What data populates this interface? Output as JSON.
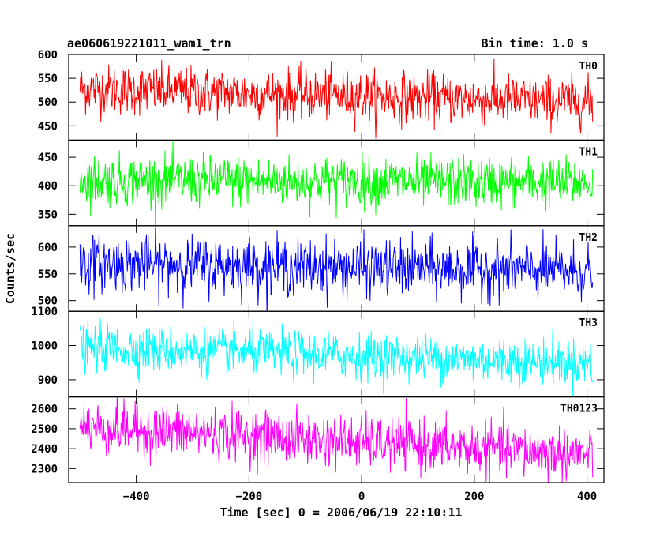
{
  "header": {
    "title": "ae060619221011_wam1_trn",
    "bin_time": "Bin time: 1.0 s"
  },
  "chart_data": {
    "type": "line",
    "xlabel": "Time [sec] 0 = 2006/06/19 22:10:11",
    "ylabel": "Counts/sec",
    "xlim": [
      -520,
      430
    ],
    "x_range": [
      -500,
      410
    ],
    "x_ticks": [
      -400,
      -200,
      0,
      200,
      400
    ],
    "panels": [
      {
        "name": "TH0",
        "color": "#ff0000",
        "ylim": [
          420,
          600
        ],
        "y_ticks": [
          450,
          500,
          550,
          600
        ],
        "mean_start": 528,
        "mean_end": 500,
        "noise": 26
      },
      {
        "name": "TH1",
        "color": "#00ff00",
        "ylim": [
          330,
          480
        ],
        "y_ticks": [
          350,
          400,
          450
        ],
        "mean_start": 410,
        "mean_end": 405,
        "noise": 22
      },
      {
        "name": "TH2",
        "color": "#0000ff",
        "ylim": [
          480,
          640
        ],
        "y_ticks": [
          500,
          550,
          600
        ],
        "mean_start": 570,
        "mean_end": 555,
        "noise": 26
      },
      {
        "name": "TH3",
        "color": "#00ffff",
        "ylim": [
          850,
          1100
        ],
        "y_ticks": [
          900,
          1000,
          1100
        ],
        "mean_start": 995,
        "mean_end": 950,
        "noise": 33
      },
      {
        "name": "TH0123",
        "color": "#ff00ff",
        "ylim": [
          2230,
          2660
        ],
        "y_ticks": [
          2300,
          2400,
          2500,
          2600
        ],
        "mean_start": 2510,
        "mean_end": 2370,
        "noise": 65
      }
    ]
  }
}
